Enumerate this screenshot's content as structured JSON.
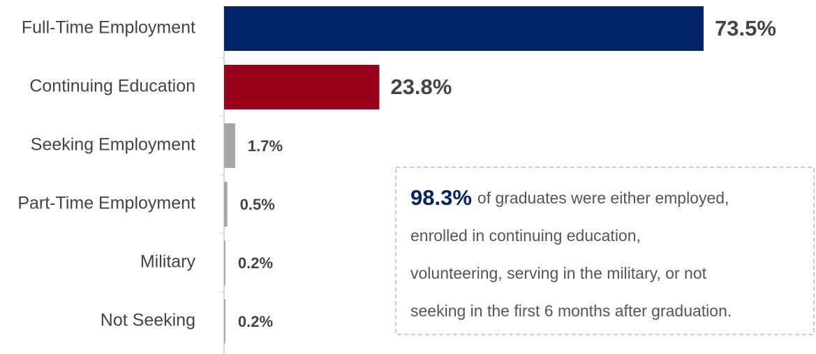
{
  "chart_data": {
    "type": "hbar",
    "categories": [
      "Full-Time Employment",
      "Continuing Education",
      "Seeking Employment",
      "Part-Time Employment",
      "Military",
      "Not Seeking"
    ],
    "values": [
      73.5,
      23.8,
      1.7,
      0.5,
      0.2,
      0.2
    ],
    "value_labels": [
      "73.5%",
      "23.8%",
      "1.7%",
      "0.5%",
      "0.2%",
      "0.2%"
    ],
    "colors": [
      "#002469",
      "#990019",
      "#a6a6a6",
      "#a6a6a6",
      "#a6a6a6",
      "#a6a6a6"
    ],
    "annotation": {
      "highlight": "98.3%",
      "lines": [
        "of graduates were either employed,",
        "enrolled in continuing education,",
        "volunteering, serving in the military, or not",
        "seeking in the first 6 months after graduation."
      ]
    }
  }
}
